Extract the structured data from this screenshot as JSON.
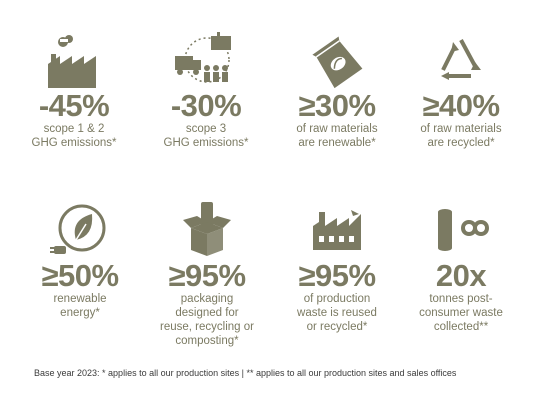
{
  "colors": {
    "accent": "#7b7a62",
    "text_dark": "#3a3a3a",
    "background": "#ffffff"
  },
  "tiles": [
    {
      "icon": "factory-emissions-icon",
      "value": "-45%",
      "desc": [
        "scope 1 & 2",
        "GHG emissions*"
      ]
    },
    {
      "icon": "supply-chain-icon",
      "value": "-30%",
      "desc": [
        "scope 3",
        "GHG emissions*"
      ]
    },
    {
      "icon": "seed-bag-icon",
      "value": "≥30%",
      "desc": [
        "of raw materials",
        "are renewable*"
      ]
    },
    {
      "icon": "recycle-icon",
      "value": "≥40%",
      "desc": [
        "of raw materials",
        "are recycled*"
      ]
    },
    {
      "icon": "leaf-plug-icon",
      "value": "≥50%",
      "desc": [
        "renewable",
        "energy*"
      ]
    },
    {
      "icon": "open-box-icon",
      "value": "≥95%",
      "desc": [
        "packaging",
        "designed for",
        "reuse, recycling or",
        "composting*"
      ]
    },
    {
      "icon": "factory-waste-icon",
      "value": "≥95%",
      "desc": [
        "of production",
        "waste is reused",
        "or recycled*"
      ]
    },
    {
      "icon": "can-infinity-icon",
      "value": "20x",
      "desc": [
        "tonnes post-",
        "consumer waste",
        "collected**"
      ]
    }
  ],
  "footnote": "Base year 2023: * applies to all our production sites | ** applies to all our production sites and sales offices"
}
